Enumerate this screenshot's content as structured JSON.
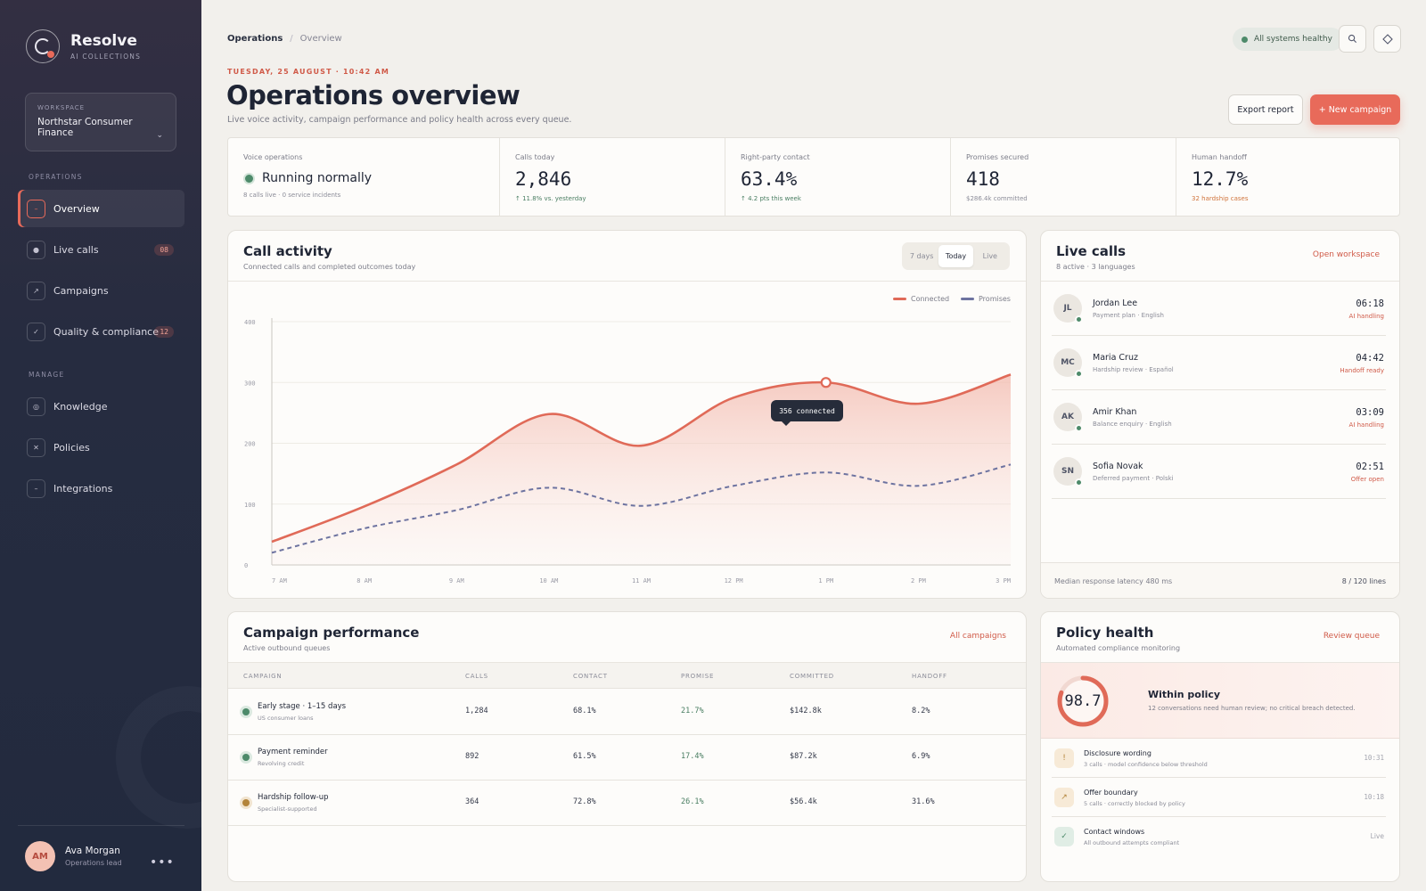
{
  "brand": {
    "name": "Resolve",
    "sub": "AI COLLECTIONS"
  },
  "workspace": {
    "label": "WORKSPACE",
    "name": "Northstar Consumer Finance"
  },
  "nav": {
    "operations_label": "OPERATIONS",
    "manage_label": "MANAGE",
    "overview": "Overview",
    "live_calls": "Live calls",
    "live_calls_badge": "08",
    "campaigns": "Campaigns",
    "quality": "Quality & compliance",
    "quality_badge": "12",
    "knowledge": "Knowledge",
    "policies": "Policies",
    "integrations": "Integrations"
  },
  "user": {
    "initials": "AM",
    "name": "Ava Morgan",
    "role": "Operations lead"
  },
  "header": {
    "breadcrumb_root": "Operations",
    "breadcrumb_current": "Overview",
    "status": "All systems healthy",
    "date": "TUESDAY, 25 AUGUST · 10:42 AM",
    "title": "Operations overview",
    "subtitle": "Live voice activity, campaign performance and policy health across every queue.",
    "export_label": "Export report",
    "new_label": "+ New campaign"
  },
  "kpis": {
    "voice_label": "Voice operations",
    "voice_status": "Running normally",
    "voice_note": "8 calls live · 0 service incidents",
    "calls_label": "Calls today",
    "calls_value": "2,846",
    "calls_note": "↑ 11.8% vs. yesterday",
    "rpc_label": "Right-party contact",
    "rpc_value": "63.4%",
    "rpc_note": "↑ 4.2 pts this week",
    "promises_label": "Promises secured",
    "promises_value": "418",
    "promises_note": "$286.4k committed",
    "handoff_label": "Human handoff",
    "handoff_value": "12.7%",
    "handoff_note": "32 hardship cases"
  },
  "call_activity": {
    "title": "Call activity",
    "subtitle": "Connected calls and completed outcomes today",
    "tabs": [
      "7 days",
      "Today",
      "Live"
    ],
    "tooltip": "356 connected"
  },
  "chart_data": {
    "type": "area",
    "x": [
      "7 AM",
      "8 AM",
      "9 AM",
      "10 AM",
      "11 AM",
      "12 PM",
      "1 PM",
      "2 PM",
      "3 PM"
    ],
    "y_ticks": [
      "400",
      "300",
      "200",
      "100",
      "0"
    ],
    "ylim": [
      0,
      400
    ],
    "series": [
      {
        "name": "Connected",
        "values": [
          38,
          96,
          165,
          248,
          196,
          275,
          300,
          265,
          313
        ],
        "color": "#e06a58"
      },
      {
        "name": "Promises",
        "values": [
          20,
          60,
          90,
          127,
          97,
          130,
          152,
          130,
          165
        ],
        "color": "#6d73a0"
      }
    ],
    "legend": "top-right",
    "grid": true
  },
  "live_calls": {
    "title": "Live calls",
    "subtitle": "8 active · 3 languages",
    "link": "Open workspace",
    "calls": [
      {
        "initials": "JL",
        "name": "Jordan Lee",
        "meta": "Payment plan · English",
        "time": "06:18",
        "state": "AI handling"
      },
      {
        "initials": "MC",
        "name": "Maria Cruz",
        "meta": "Hardship review · Español",
        "time": "04:42",
        "state": "Handoff ready"
      },
      {
        "initials": "AK",
        "name": "Amir Khan",
        "meta": "Balance enquiry · English",
        "time": "03:09",
        "state": "AI handling"
      },
      {
        "initials": "SN",
        "name": "Sofia Novak",
        "meta": "Deferred payment · Polski",
        "time": "02:51",
        "state": "Offer open"
      }
    ],
    "footer_left": "Median response latency 480 ms",
    "footer_right": "8 / 120 lines"
  },
  "campaigns": {
    "title": "Campaign performance",
    "subtitle": "Active outbound queues",
    "link": "All campaigns",
    "columns": [
      "CAMPAIGN",
      "CALLS",
      "CONTACT",
      "PROMISE",
      "COMMITTED",
      "HANDOFF"
    ],
    "rows": [
      {
        "name": "Early stage · 1–15 days",
        "sub": "US consumer loans",
        "calls": "1,284",
        "contact": "68.1%",
        "promise": "21.7%",
        "committed": "$142.8k",
        "handoff": "8.2%",
        "dot": "#4d8a6a"
      },
      {
        "name": "Payment reminder",
        "sub": "Revolving credit",
        "calls": "892",
        "contact": "61.5%",
        "promise": "17.4%",
        "committed": "$87.2k",
        "handoff": "6.9%",
        "dot": "#4d8a6a"
      },
      {
        "name": "Hardship follow-up",
        "sub": "Specialist-supported",
        "calls": "364",
        "contact": "72.8%",
        "promise": "26.1%",
        "committed": "$56.4k",
        "handoff": "31.6%",
        "dot": "#b3843a"
      }
    ]
  },
  "policy": {
    "title": "Policy health",
    "subtitle": "Automated compliance monitoring",
    "link": "Review queue",
    "score": "98.7",
    "score_fraction": 0.987,
    "status_title": "Within policy",
    "status_sub": "12 conversations need human review; no critical breach detected.",
    "items": [
      {
        "icon": "!",
        "title": "Disclosure wording",
        "sub": "3 calls · model confidence below threshold",
        "time": "10:31",
        "icon_bg": "#f7ead7",
        "icon_color": "#b3843a"
      },
      {
        "icon": "↗",
        "title": "Offer boundary",
        "sub": "5 calls · correctly blocked by policy",
        "time": "10:18",
        "icon_bg": "#f7ead7",
        "icon_color": "#b3843a"
      },
      {
        "icon": "✓",
        "title": "Contact windows",
        "sub": "All outbound attempts compliant",
        "time": "Live",
        "icon_bg": "#e0ede5",
        "icon_color": "#4d8a6a"
      }
    ]
  }
}
